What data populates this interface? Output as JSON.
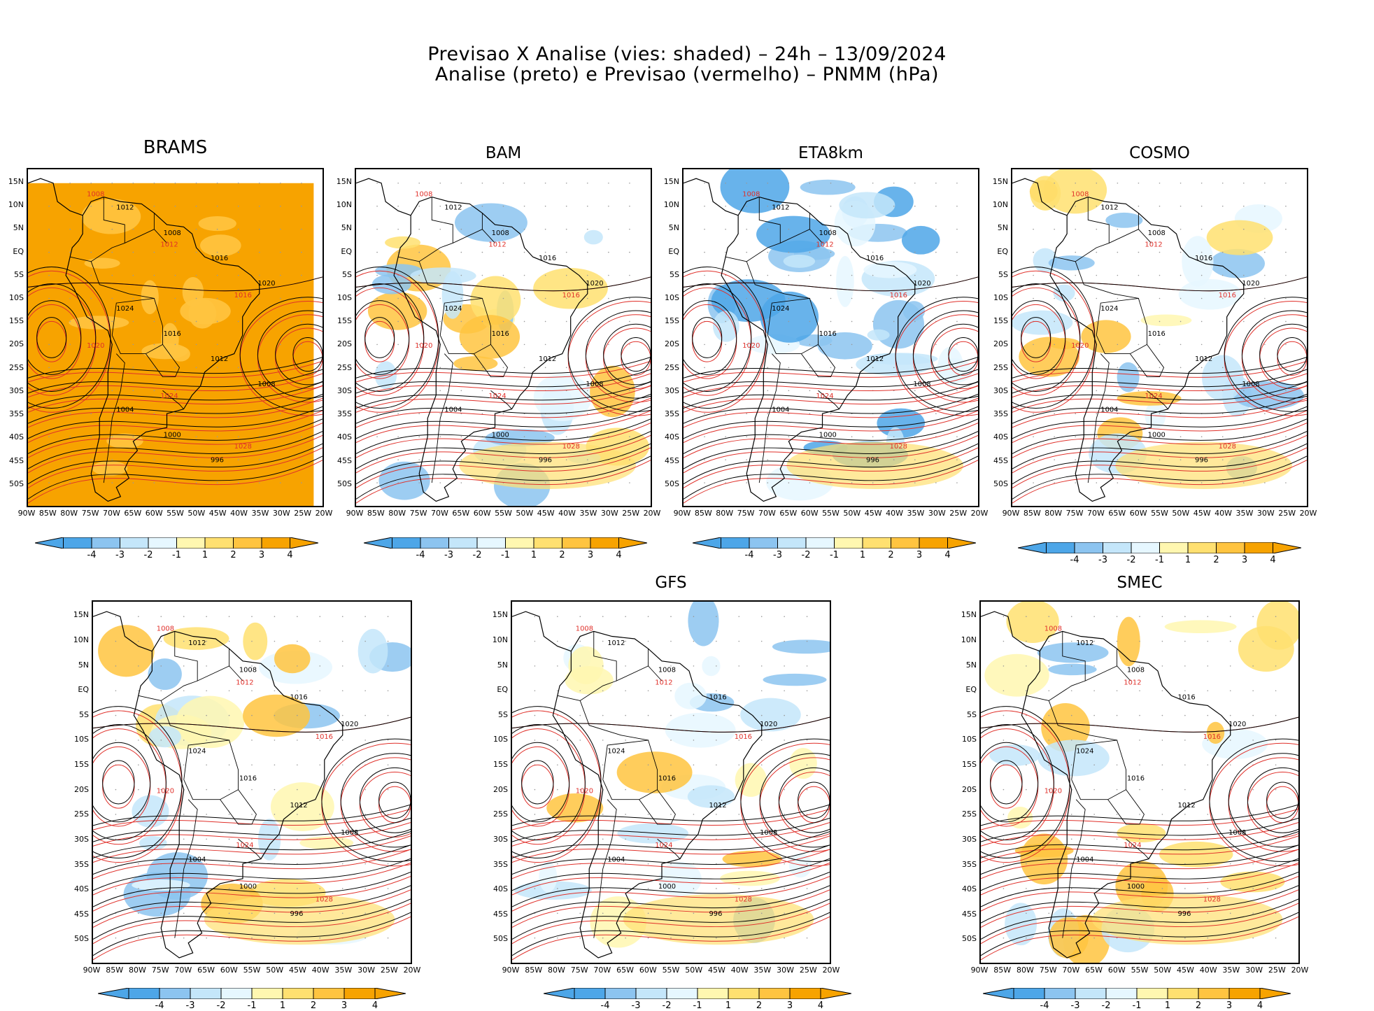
{
  "header": {
    "line1": "Previsao X Analise (vies: shaded) – 24h – 13/09/2024",
    "line2": "Analise (preto) e Previsao (vermelho) – PNMM (hPa)"
  },
  "panels": [
    {
      "id": "brams",
      "label": "BRAMS",
      "bias": "warm"
    },
    {
      "id": "bam",
      "label": "BAM",
      "bias": "mixed"
    },
    {
      "id": "eta",
      "label": "ETA8km",
      "bias": "cold"
    },
    {
      "id": "cosmo",
      "label": "COSMO",
      "bias": "mixed"
    },
    {
      "id": "unnamed",
      "label": "",
      "bias": "mixed"
    },
    {
      "id": "gfs",
      "label": "GFS",
      "bias": "mixed"
    },
    {
      "id": "smec",
      "label": "SMEC",
      "bias": "mixed"
    }
  ],
  "lat_labels": [
    "15N",
    "10N",
    "5N",
    "EQ",
    "5S",
    "10S",
    "15S",
    "20S",
    "25S",
    "30S",
    "35S",
    "40S",
    "45S",
    "50S"
  ],
  "lon_labels": [
    "90W",
    "85W",
    "80W",
    "75W",
    "70W",
    "65W",
    "60W",
    "55W",
    "50W",
    "45W",
    "40W",
    "35W",
    "30W",
    "25W",
    "20W"
  ],
  "colorbar": {
    "labels": [
      "-4",
      "-3",
      "-2",
      "-1",
      "1",
      "2",
      "3",
      "4"
    ],
    "colors": [
      "#4da6e8",
      "#8cc4f0",
      "#c4e6fa",
      "#e6f7ff",
      "#ffffff",
      "#fff7b0",
      "#ffe070",
      "#ffc440",
      "#f7a300"
    ]
  },
  "contour_labels": {
    "analysis": [
      "1012",
      "1008",
      "1016",
      "1020",
      "1024",
      "1016",
      "1012",
      "1008",
      "1004",
      "1000",
      "996"
    ],
    "forecast": [
      "1008",
      "1012",
      "1016",
      "1020",
      "1024",
      "1028"
    ]
  },
  "colors": {
    "analysis": "#000000",
    "forecast": "#e0302a",
    "grid": "#999999"
  }
}
